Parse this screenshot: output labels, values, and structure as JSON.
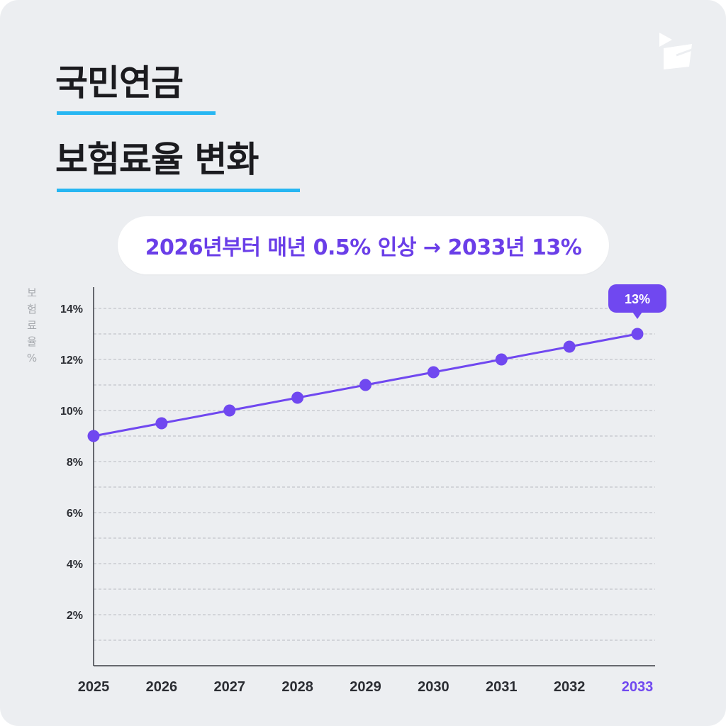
{
  "title": {
    "line1": "국민연금",
    "line2": "보험료율 변화"
  },
  "subtitle": "2026년부터 매년 0.5% 인상 → 2033년 13%",
  "logo": {
    "icon": "brand-logo-icon",
    "color": "#ffffff"
  },
  "colors": {
    "accent": "#7048f0",
    "underline": "#27b6f2",
    "background": "#eceef1",
    "axis_text": "#2b2d33",
    "grid": "#b8bbc1"
  },
  "chart_data": {
    "type": "line",
    "ylabel": "보험료율 %",
    "ylabel_chars": [
      "보",
      "험",
      "료",
      "율",
      "%"
    ],
    "ylim": [
      0,
      15
    ],
    "yticks": [
      2,
      4,
      6,
      8,
      10,
      12,
      14
    ],
    "ytick_labels": [
      "2%",
      "4%",
      "6%",
      "8%",
      "10%",
      "12%",
      "14%"
    ],
    "grid": "dashed, every 1%",
    "categories": [
      "2025",
      "2026",
      "2027",
      "2028",
      "2029",
      "2030",
      "2031",
      "2032",
      "2033"
    ],
    "values": [
      9,
      9.5,
      10,
      10.5,
      11,
      11.5,
      12,
      12.5,
      13
    ],
    "highlight": {
      "category": "2033",
      "label": "13%"
    }
  }
}
